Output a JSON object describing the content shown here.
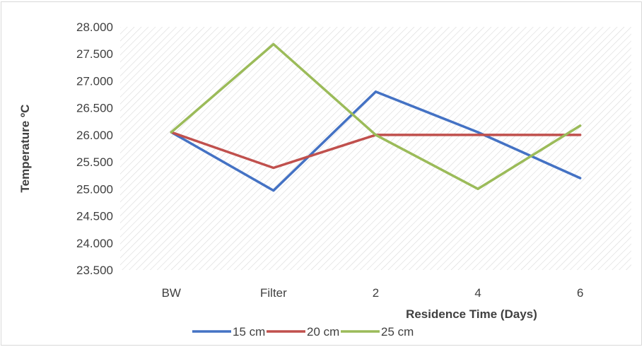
{
  "chart_data": {
    "type": "line",
    "categories": [
      "BW",
      "Filter",
      "2",
      "4",
      "6"
    ],
    "xlabel": "Residence Time (Days)",
    "ylabel": "Temperature ºC",
    "ylim": [
      23.5,
      28.0
    ],
    "yticks": [
      "23.500",
      "24.000",
      "24.500",
      "25.000",
      "25.500",
      "26.000",
      "26.500",
      "27.000",
      "27.500",
      "28.000"
    ],
    "grid": false,
    "plot_background": "diagonal-hatch",
    "legend_position": "bottom",
    "series": [
      {
        "name": "15 cm",
        "color": "#4472c4",
        "values": [
          26.05,
          24.97,
          26.8,
          26.05,
          25.2
        ]
      },
      {
        "name": "20 cm",
        "color": "#c0504d",
        "values": [
          26.05,
          25.39,
          26.0,
          26.0,
          26.0
        ]
      },
      {
        "name": "25 cm",
        "color": "#9bbb59",
        "values": [
          26.05,
          27.68,
          26.0,
          25.0,
          26.17
        ]
      }
    ]
  }
}
